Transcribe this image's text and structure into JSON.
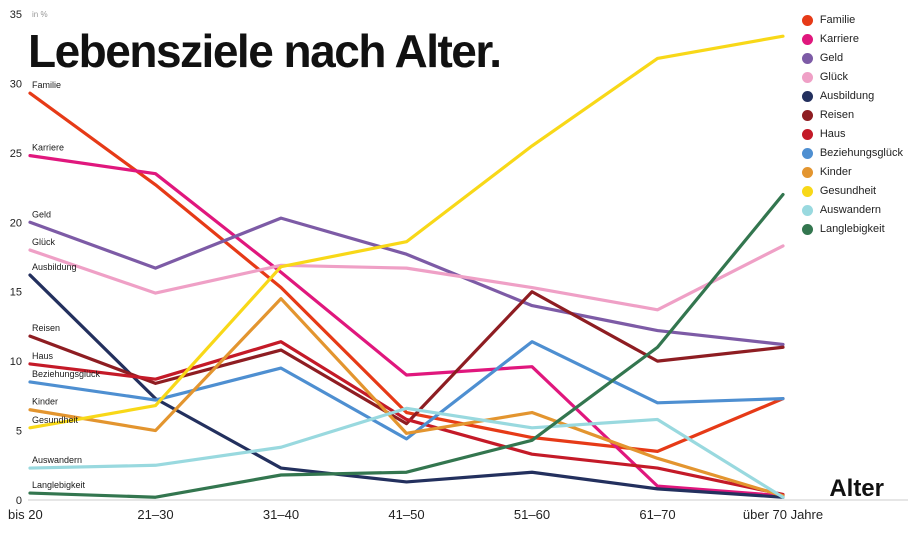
{
  "title": "Lebensziele nach Alter.",
  "axis": {
    "y_unit": "in %",
    "x_label": "Alter",
    "y_ticks": [
      0,
      5,
      10,
      15,
      20,
      25,
      30,
      35
    ]
  },
  "chart_data": {
    "type": "line",
    "title": "Lebensziele nach Alter.",
    "xlabel": "Alter",
    "ylabel": "in %",
    "ylim": [
      0,
      35
    ],
    "grid": false,
    "legend_position": "top-right",
    "categories": [
      "bis 20",
      "21–30",
      "31–40",
      "41–50",
      "51–60",
      "61–70",
      "über 70 Jahre"
    ],
    "series": [
      {
        "name": "Familie",
        "color": "#e63a17",
        "values": [
          29.3,
          22.7,
          15.3,
          6.3,
          4.5,
          3.5,
          7.3
        ]
      },
      {
        "name": "Karriere",
        "color": "#e0177d",
        "values": [
          24.8,
          23.5,
          16.4,
          9.0,
          9.6,
          1.0,
          0.3
        ]
      },
      {
        "name": "Geld",
        "color": "#7d5ba6",
        "values": [
          20.0,
          16.7,
          20.3,
          17.7,
          14.0,
          12.2,
          11.2
        ]
      },
      {
        "name": "Glück",
        "color": "#efa0c6",
        "values": [
          18.0,
          14.9,
          16.9,
          16.7,
          15.3,
          13.7,
          18.3
        ]
      },
      {
        "name": "Ausbildung",
        "color": "#23305e",
        "values": [
          16.2,
          7.3,
          2.3,
          1.3,
          2.0,
          0.8,
          0.2
        ]
      },
      {
        "name": "Reisen",
        "color": "#8e1d22",
        "values": [
          11.8,
          8.4,
          10.8,
          5.5,
          15.0,
          10.0,
          11.0
        ]
      },
      {
        "name": "Haus",
        "color": "#c41a28",
        "values": [
          9.8,
          8.7,
          11.4,
          5.8,
          3.3,
          2.3,
          0.4
        ]
      },
      {
        "name": "Beziehungsglück",
        "color": "#4e8fd1",
        "values": [
          8.5,
          7.2,
          9.5,
          4.4,
          11.4,
          7.0,
          7.3
        ]
      },
      {
        "name": "Kinder",
        "color": "#e3952f",
        "values": [
          6.5,
          5.0,
          14.5,
          4.8,
          6.3,
          3.0,
          0.3
        ]
      },
      {
        "name": "Gesundheit",
        "color": "#f8d818",
        "values": [
          5.2,
          6.8,
          16.8,
          18.6,
          25.5,
          31.8,
          33.4
        ]
      },
      {
        "name": "Auswandern",
        "color": "#99d9df",
        "values": [
          2.3,
          2.5,
          3.8,
          6.6,
          5.2,
          5.8,
          0.2
        ]
      },
      {
        "name": "Langlebigkeit",
        "color": "#33764f",
        "values": [
          0.5,
          0.2,
          1.8,
          2.0,
          4.3,
          11.0,
          22.0
        ]
      }
    ]
  }
}
